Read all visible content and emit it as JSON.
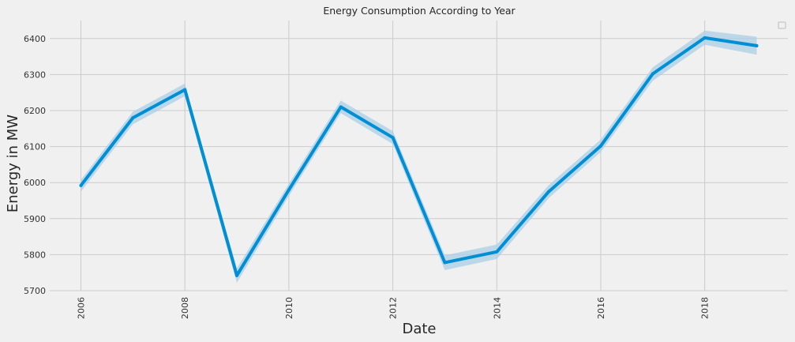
{
  "chart_data": {
    "type": "line",
    "title": "Energy Consumption According to Year",
    "xlabel": "Date",
    "ylabel": "Energy in MW",
    "xlim": [
      2005.4,
      2019.6
    ],
    "ylim": [
      5700,
      6450
    ],
    "x_ticks": [
      2006,
      2008,
      2010,
      2012,
      2014,
      2016,
      2018
    ],
    "y_ticks": [
      5700,
      5800,
      5900,
      6000,
      6100,
      6200,
      6300,
      6400
    ],
    "grid": true,
    "legend": "top-right",
    "series": [
      {
        "x": [
          2006,
          2007,
          2008,
          2009,
          2010,
          2011,
          2012,
          2013,
          2014,
          2015,
          2016,
          2017,
          2018,
          2019
        ],
        "values": [
          5992,
          6180,
          6258,
          5742,
          5980,
          6210,
          6125,
          5778,
          5808,
          5975,
          6102,
          6302,
          6402,
          6380
        ],
        "ci_lower": [
          5975,
          6162,
          6240,
          5722,
          5963,
          6193,
          6107,
          5757,
          5788,
          5957,
          6085,
          6283,
          6383,
          6355
        ],
        "ci_upper": [
          6008,
          6197,
          6275,
          5762,
          5997,
          6228,
          6143,
          5798,
          5828,
          5993,
          6120,
          6320,
          6422,
          6405
        ]
      }
    ],
    "colors": {
      "line": "#008fd5",
      "band": "#a9cfe6",
      "grid": "#cbcbcb",
      "background": "#f0f0f0"
    }
  }
}
